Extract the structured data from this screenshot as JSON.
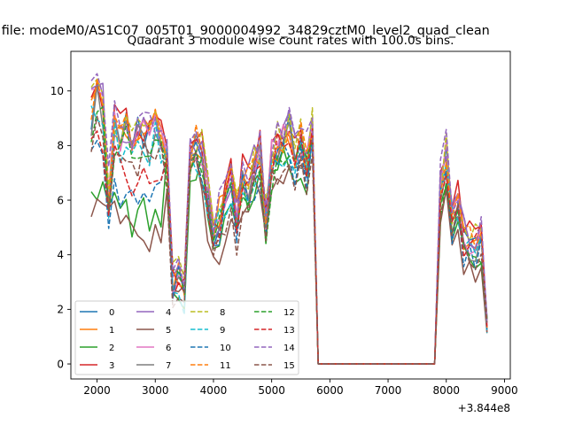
{
  "suptitle": "n file: modeM0/AS1C07_005T01_9000004992_34829cztM0_level2_quad_clean",
  "chart_data": {
    "type": "line",
    "title": "Quadrant 3 module wise count rates with 100.0s bins.",
    "xlabel": "",
    "ylabel": "",
    "x_offset_label": "+3.844e8",
    "xlim": [
      1550,
      9100
    ],
    "ylim": [
      -0.55,
      11.45
    ],
    "xticks": [
      2000,
      3000,
      4000,
      5000,
      6000,
      7000,
      8000,
      9000
    ],
    "xtick_labels": [
      "2000",
      "3000",
      "4000",
      "5000",
      "6000",
      "7000",
      "8000",
      "9000"
    ],
    "yticks": [
      0,
      2,
      4,
      6,
      8,
      10
    ],
    "ytick_labels": [
      "0",
      "2",
      "4",
      "6",
      "8",
      "10"
    ],
    "grid": false,
    "legend_position": "lower-left",
    "x": [
      1900,
      2000,
      2100,
      2200,
      2300,
      2400,
      2500,
      2600,
      2700,
      2800,
      2900,
      3000,
      3100,
      3200,
      3300,
      3400,
      3500,
      3600,
      3700,
      3800,
      3900,
      4000,
      4100,
      4200,
      4300,
      4400,
      4500,
      4600,
      4700,
      4800,
      4900,
      5000,
      5100,
      5200,
      5300,
      5400,
      5500,
      5600,
      5700,
      5800,
      7800,
      7900,
      8000,
      8100,
      8200,
      8300,
      8400,
      8500,
      8600,
      8700
    ],
    "series": [
      {
        "name": "0",
        "color": "#1f77b4",
        "dash": false
      },
      {
        "name": "1",
        "color": "#ff7f0e",
        "dash": false
      },
      {
        "name": "2",
        "color": "#2ca02c",
        "dash": false
      },
      {
        "name": "3",
        "color": "#d62728",
        "dash": false
      },
      {
        "name": "4",
        "color": "#9467bd",
        "dash": false
      },
      {
        "name": "5",
        "color": "#8c564b",
        "dash": false
      },
      {
        "name": "6",
        "color": "#e377c2",
        "dash": false
      },
      {
        "name": "7",
        "color": "#7f7f7f",
        "dash": false
      },
      {
        "name": "8",
        "color": "#bcbd22",
        "dash": true
      },
      {
        "name": "9",
        "color": "#17becf",
        "dash": true
      },
      {
        "name": "10",
        "color": "#1f77b4",
        "dash": true
      },
      {
        "name": "11",
        "color": "#ff7f0e",
        "dash": true
      },
      {
        "name": "12",
        "color": "#2ca02c",
        "dash": true
      },
      {
        "name": "13",
        "color": "#d62728",
        "dash": true
      },
      {
        "name": "14",
        "color": "#9467bd",
        "dash": true
      },
      {
        "name": "15",
        "color": "#8c564b",
        "dash": true
      }
    ]
  }
}
